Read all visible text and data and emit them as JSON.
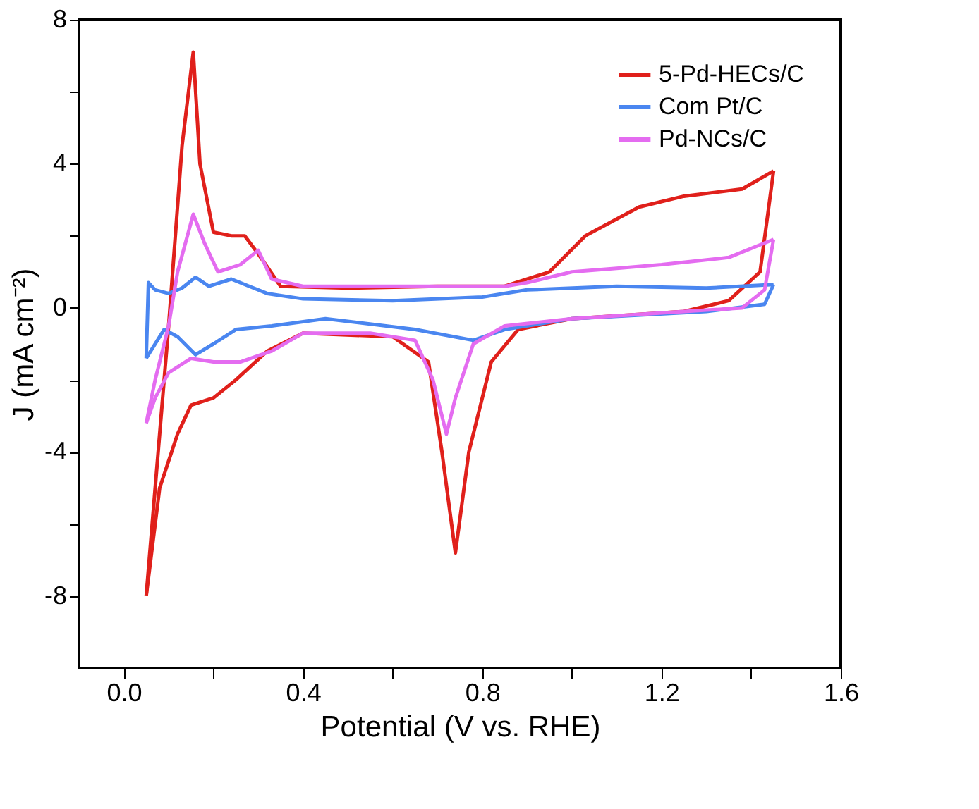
{
  "chart_data": {
    "type": "line",
    "xlabel": "Potential (V vs. RHE)",
    "ylabel": "J (mA cm⁻²)",
    "xlim": [
      -0.1,
      1.6
    ],
    "ylim": [
      -10,
      8
    ],
    "xticks": [
      {
        "value": 0,
        "label": "0.0"
      },
      {
        "value": 0.2,
        "label": null
      },
      {
        "value": 0.4,
        "label": "0.4"
      },
      {
        "value": 0.6,
        "label": null
      },
      {
        "value": 0.8,
        "label": "0.8"
      },
      {
        "value": 1.0,
        "label": null
      },
      {
        "value": 1.2,
        "label": "1.2"
      },
      {
        "value": 1.4,
        "label": null
      },
      {
        "value": 1.6,
        "label": "1.6"
      }
    ],
    "yticks": [
      -8,
      {
        "value": -6,
        "label": null
      },
      -4,
      {
        "value": -2,
        "label": null
      },
      0,
      {
        "value": 2,
        "label": null
      },
      4,
      {
        "value": 6,
        "label": null
      },
      8
    ],
    "grid": false,
    "legend": "top right",
    "marker": "none",
    "line_style": "solid",
    "series": [
      {
        "name": "5-Pd-HECs/C",
        "color": "#e0201b",
        "x": [
          0.05,
          0.1,
          0.13,
          0.155,
          0.17,
          0.2,
          0.24,
          0.27,
          0.3,
          0.35,
          0.5,
          0.7,
          0.85,
          0.95,
          1.03,
          1.15,
          1.25,
          1.38,
          1.45
        ],
        "values": [
          -8,
          -0.5,
          4.5,
          7.1,
          4,
          2.1,
          2.0,
          2.0,
          1.5,
          0.6,
          0.55,
          0.6,
          0.6,
          1.0,
          2.0,
          2.8,
          3.1,
          3.3,
          3.8
        ]
      },
      {
        "color": "#e0201b",
        "x": [
          1.45,
          1.42,
          1.35,
          1.25,
          1.0,
          0.88,
          0.82,
          0.77,
          0.74,
          0.71,
          0.68,
          0.6,
          0.4,
          0.32,
          0.25,
          0.2,
          0.15,
          0.12,
          0.08,
          0.05
        ],
        "values": [
          3.8,
          1.0,
          0.2,
          -0.1,
          -0.3,
          -0.6,
          -1.5,
          -4,
          -6.8,
          -4,
          -1.5,
          -0.8,
          -0.7,
          -1.2,
          -2,
          -2.5,
          -2.7,
          -3.5,
          -5,
          -8
        ]
      },
      {
        "name": "Com Pt/C",
        "color": "#4a86f0",
        "x": [
          0.05,
          0.055,
          0.07,
          0.1,
          0.13,
          0.16,
          0.19,
          0.24,
          0.28,
          0.32,
          0.4,
          0.6,
          0.8,
          0.9,
          1.1,
          1.3,
          1.45
        ],
        "values": [
          -1.4,
          0.7,
          0.5,
          0.4,
          0.55,
          0.85,
          0.6,
          0.8,
          0.6,
          0.4,
          0.25,
          0.2,
          0.3,
          0.5,
          0.6,
          0.55,
          0.65
        ]
      },
      {
        "color": "#4a86f0",
        "x": [
          1.45,
          1.43,
          1.3,
          1.0,
          0.85,
          0.78,
          0.65,
          0.45,
          0.33,
          0.25,
          0.2,
          0.16,
          0.12,
          0.09,
          0.05
        ],
        "values": [
          0.65,
          0.1,
          -0.1,
          -0.3,
          -0.6,
          -0.9,
          -0.6,
          -0.3,
          -0.5,
          -0.6,
          -1.0,
          -1.3,
          -0.8,
          -0.6,
          -1.4
        ]
      },
      {
        "name": "Pd-NCs/C",
        "color": "#e46cf0",
        "x": [
          0.05,
          0.07,
          0.1,
          0.12,
          0.155,
          0.18,
          0.21,
          0.26,
          0.3,
          0.33,
          0.4,
          0.85,
          0.9,
          1.0,
          1.1,
          1.2,
          1.35,
          1.45
        ],
        "values": [
          -3.2,
          -2,
          -0.5,
          1.0,
          2.6,
          1.8,
          1.0,
          1.2,
          1.6,
          0.8,
          0.6,
          0.6,
          0.7,
          1.0,
          1.1,
          1.2,
          1.4,
          1.9
        ]
      },
      {
        "color": "#e46cf0",
        "x": [
          1.45,
          1.43,
          1.38,
          1.25,
          1.0,
          0.85,
          0.78,
          0.74,
          0.72,
          0.69,
          0.65,
          0.55,
          0.4,
          0.33,
          0.26,
          0.2,
          0.15,
          0.1,
          0.07,
          0.05
        ],
        "values": [
          1.9,
          0.5,
          0,
          -0.1,
          -0.3,
          -0.5,
          -1.0,
          -2.5,
          -3.5,
          -2,
          -0.9,
          -0.7,
          -0.7,
          -1.2,
          -1.5,
          -1.5,
          -1.4,
          -1.8,
          -2.5,
          -3.2
        ]
      }
    ]
  }
}
